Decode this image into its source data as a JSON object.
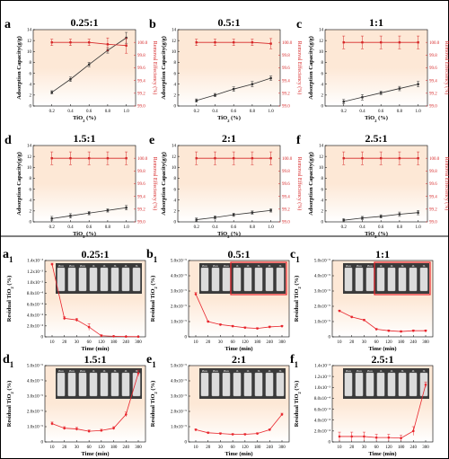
{
  "panel_letters": {
    "a": "a",
    "b": "b",
    "c": "c",
    "d": "d",
    "e": "e",
    "f": "f",
    "a1": "a",
    "b1": "b",
    "c1": "c",
    "d1": "d",
    "e1": "e",
    "f1": "f",
    "sub": "1"
  },
  "chart_data": [
    {
      "id": "a",
      "type": "line",
      "title": "0.25:1",
      "x": [
        0.2,
        0.4,
        0.6,
        0.8,
        1.0
      ],
      "xlabel": "TiO2 (%)",
      "xlim": [
        0,
        1.1
      ],
      "xticks": [
        "0.2",
        "0.4",
        "0.6",
        "0.8",
        "1.0"
      ],
      "ylabel": "Adsorption Capacity(g/g)",
      "ylim": [
        0,
        14
      ],
      "yticks": [
        "0",
        "2",
        "4",
        "6",
        "8",
        "10",
        "12",
        "14"
      ],
      "y2label": "Removal Effeciency (%)",
      "y2lim": [
        99.0,
        100.2
      ],
      "y2ticks": [
        "99.0",
        "99.2",
        "99.4",
        "99.6",
        "99.8",
        "100.0"
      ],
      "series": [
        {
          "axis": "left",
          "color": "#333333",
          "values": [
            2.5,
            4.9,
            7.6,
            10.2,
            12.5
          ],
          "errors": [
            0.3,
            0.4,
            0.4,
            0.5,
            1.0
          ]
        },
        {
          "axis": "right",
          "color": "#d62728",
          "values": [
            100.0,
            100.0,
            100.0,
            99.97,
            99.95
          ],
          "errors": [
            0.05,
            0.05,
            0.05,
            0.1,
            0.12
          ]
        }
      ]
    },
    {
      "id": "b",
      "type": "line",
      "title": "0.5:1",
      "x": [
        0.2,
        0.4,
        0.6,
        0.8,
        1.0
      ],
      "xlabel": "TiO2 (%)",
      "xlim": [
        0,
        1.1
      ],
      "xticks": [
        "0.2",
        "0.4",
        "0.6",
        "0.8",
        "1.0"
      ],
      "ylabel": "Adsorption Capacity(g/g)",
      "ylim": [
        0,
        14
      ],
      "yticks": [
        "0",
        "2",
        "4",
        "6",
        "8",
        "10",
        "12",
        "14"
      ],
      "y2label": "Removal Effeciency (%)",
      "y2lim": [
        99.0,
        100.2
      ],
      "y2ticks": [
        "99.0",
        "99.2",
        "99.4",
        "99.6",
        "99.8",
        "100.0"
      ],
      "series": [
        {
          "axis": "left",
          "color": "#333333",
          "values": [
            1.0,
            2.0,
            3.1,
            4.0,
            5.1
          ],
          "errors": [
            0.3,
            0.3,
            0.4,
            0.5,
            0.4
          ]
        },
        {
          "axis": "right",
          "color": "#d62728",
          "values": [
            100.0,
            100.0,
            100.0,
            100.0,
            99.98
          ],
          "errors": [
            0.05,
            0.05,
            0.05,
            0.05,
            0.08
          ]
        }
      ]
    },
    {
      "id": "c",
      "type": "line",
      "title": "1:1",
      "x": [
        0.2,
        0.4,
        0.6,
        0.8,
        1.0
      ],
      "xlabel": "TiO2 (%)",
      "xlim": [
        0,
        1.1
      ],
      "xticks": [
        "0.2",
        "0.4",
        "0.6",
        "0.8",
        "1.0"
      ],
      "ylabel": "Adsorption Capacity(g/g)",
      "ylim": [
        0,
        14
      ],
      "yticks": [
        "0",
        "2",
        "4",
        "6",
        "8",
        "10",
        "12",
        "14"
      ],
      "y2label": "Removal Effeciency (%)",
      "y2lim": [
        99.0,
        100.2
      ],
      "y2ticks": [
        "99.0",
        "99.2",
        "99.4",
        "99.6",
        "99.8",
        "100.0"
      ],
      "series": [
        {
          "axis": "left",
          "color": "#333333",
          "values": [
            0.8,
            1.6,
            2.4,
            3.2,
            4.0
          ],
          "errors": [
            0.4,
            0.5,
            0.3,
            0.4,
            0.5
          ]
        },
        {
          "axis": "right",
          "color": "#d62728",
          "values": [
            100.0,
            100.0,
            100.0,
            100.0,
            100.0
          ],
          "errors": [
            0.1,
            0.1,
            0.1,
            0.1,
            0.1
          ]
        }
      ]
    },
    {
      "id": "d",
      "type": "line",
      "title": "1.5:1",
      "x": [
        0.2,
        0.4,
        0.6,
        0.8,
        1.0
      ],
      "xlabel": "TiO2 (%)",
      "xlim": [
        0,
        1.1
      ],
      "xticks": [
        "0.2",
        "0.4",
        "0.6",
        "0.8",
        "1.0"
      ],
      "ylabel": "Adsorption Capacity(g/g)",
      "ylim": [
        0,
        14
      ],
      "yticks": [
        "0",
        "2",
        "4",
        "6",
        "8",
        "10",
        "12",
        "14"
      ],
      "y2label": "Removal Effeciency (%)",
      "y2lim": [
        99.0,
        100.2
      ],
      "y2ticks": [
        "99.0",
        "99.2",
        "99.4",
        "99.6",
        "99.8",
        "100.0"
      ],
      "series": [
        {
          "axis": "left",
          "color": "#333333",
          "values": [
            0.6,
            1.1,
            1.6,
            2.1,
            2.6
          ],
          "errors": [
            0.4,
            0.4,
            0.3,
            0.3,
            0.4
          ]
        },
        {
          "axis": "right",
          "color": "#d62728",
          "values": [
            100.0,
            100.0,
            100.0,
            100.0,
            100.0
          ],
          "errors": [
            0.1,
            0.1,
            0.1,
            0.1,
            0.1
          ]
        }
      ]
    },
    {
      "id": "e",
      "type": "line",
      "title": "2:1",
      "x": [
        0.2,
        0.4,
        0.6,
        0.8,
        1.0
      ],
      "xlabel": "TiO2 (%)",
      "xlim": [
        0,
        1.1
      ],
      "xticks": [
        "0.2",
        "0.4",
        "0.6",
        "0.8",
        "1.0"
      ],
      "ylabel": "Adsorption Capacity(g/g)",
      "ylim": [
        0,
        14
      ],
      "yticks": [
        "0",
        "2",
        "4",
        "6",
        "8",
        "10",
        "12",
        "14"
      ],
      "y2label": "Removal Effeciency (%)",
      "y2lim": [
        99.0,
        100.2
      ],
      "y2ticks": [
        "99.0",
        "99.2",
        "99.4",
        "99.6",
        "99.8",
        "100.0"
      ],
      "series": [
        {
          "axis": "left",
          "color": "#333333",
          "values": [
            0.4,
            0.8,
            1.3,
            1.7,
            2.1
          ],
          "errors": [
            0.3,
            0.3,
            0.3,
            0.3,
            0.3
          ]
        },
        {
          "axis": "right",
          "color": "#d62728",
          "values": [
            100.0,
            100.0,
            100.0,
            100.0,
            100.0
          ],
          "errors": [
            0.1,
            0.1,
            0.1,
            0.1,
            0.1
          ]
        }
      ]
    },
    {
      "id": "f",
      "type": "line",
      "title": "2.5:1",
      "x": [
        0.2,
        0.4,
        0.6,
        0.8,
        1.0
      ],
      "xlabel": "TiO2 (%)",
      "xlim": [
        0,
        1.1
      ],
      "xticks": [
        "0.2",
        "0.4",
        "0.6",
        "0.8",
        "1.0"
      ],
      "ylabel": "Adsorption Capacity(g/g)",
      "ylim": [
        0,
        14
      ],
      "yticks": [
        "0",
        "2",
        "4",
        "6",
        "8",
        "10",
        "12",
        "14"
      ],
      "y2label": "Removal Effeciency (%)",
      "y2lim": [
        99.0,
        100.2
      ],
      "y2ticks": [
        "99.0",
        "99.2",
        "99.4",
        "99.6",
        "99.8",
        "100.0"
      ],
      "series": [
        {
          "axis": "left",
          "color": "#333333",
          "values": [
            0.3,
            0.7,
            1.0,
            1.4,
            1.7
          ],
          "errors": [
            0.3,
            0.3,
            0.3,
            0.4,
            0.4
          ]
        },
        {
          "axis": "right",
          "color": "#d62728",
          "values": [
            100.0,
            100.0,
            100.0,
            100.0,
            100.0
          ],
          "errors": [
            0.1,
            0.1,
            0.1,
            0.1,
            0.1
          ]
        }
      ]
    },
    {
      "id": "a1",
      "type": "line",
      "title": "0.25:1",
      "x": [
        10,
        20,
        30,
        60,
        120,
        180,
        240,
        300
      ],
      "xticks": [
        "10",
        "20",
        "30",
        "60",
        "120",
        "180",
        "240",
        "300"
      ],
      "xlabel": "Time (min)",
      "ylabel": "Residual TiO2 (%)",
      "ylim": [
        0,
        1.4
      ],
      "yticks": [
        "0",
        "2.0x10⁻⁴",
        "4.0x10⁻⁴",
        "6.0x10⁻⁴",
        "8.0x10⁻⁴",
        "1.0x10⁻³",
        "1.2x10⁻³",
        "1.4x10⁻³"
      ],
      "series": [
        {
          "color": "#e8262d",
          "values": [
            1.33,
            0.34,
            0.31,
            0.18,
            0.02,
            0.01,
            0.005,
            0.003
          ],
          "errors": [
            0.02,
            0.03,
            0.03,
            0.06,
            0.02,
            0.01,
            0.005,
            0.003
          ]
        }
      ]
    },
    {
      "id": "b1",
      "type": "line",
      "title": "0.5:1",
      "x": [
        10,
        20,
        30,
        60,
        120,
        180,
        240,
        300
      ],
      "xticks": [
        "10",
        "20",
        "30",
        "60",
        "120",
        "180",
        "240",
        "300"
      ],
      "xlabel": "Time (min)",
      "ylabel": "Residual TiO2 (%)",
      "ylim": [
        0,
        5.0
      ],
      "yticks": [
        "0",
        "1.0x10⁻⁵",
        "2.0x10⁻⁵",
        "3.0x10⁻⁵",
        "4.0x10⁻⁵",
        "5.0x10⁻⁵"
      ],
      "series": [
        {
          "color": "#e8262d",
          "values": [
            2.8,
            1.0,
            0.8,
            0.7,
            0.6,
            0.55,
            0.65,
            0.7
          ],
          "errors": [
            0.1,
            0.05,
            0.05,
            0.05,
            0.05,
            0.05,
            0.05,
            0.05
          ]
        }
      ]
    },
    {
      "id": "c1",
      "type": "line",
      "title": "1:1",
      "x": [
        10,
        20,
        30,
        60,
        120,
        180,
        240,
        300
      ],
      "xticks": [
        "10",
        "20",
        "30",
        "60",
        "120",
        "180",
        "240",
        "300"
      ],
      "xlabel": "Time (min)",
      "ylabel": "Residual TiO2 (%)",
      "ylim": [
        0,
        5.0
      ],
      "yticks": [
        "0",
        "1.0x10⁻⁵",
        "2.0x10⁻⁵",
        "3.0x10⁻⁵",
        "4.0x10⁻⁵",
        "5.0x10⁻⁵"
      ],
      "series": [
        {
          "color": "#e8262d",
          "values": [
            1.7,
            1.3,
            1.1,
            0.5,
            0.4,
            0.35,
            0.4,
            0.4
          ],
          "errors": [
            0.05,
            0.05,
            0.05,
            0.05,
            0.05,
            0.05,
            0.05,
            0.05
          ]
        }
      ]
    },
    {
      "id": "d1",
      "type": "line",
      "title": "1.5:1",
      "x": [
        10,
        20,
        30,
        60,
        120,
        180,
        240,
        300
      ],
      "xticks": [
        "10",
        "20",
        "30",
        "60",
        "120",
        "180",
        "240",
        "300"
      ],
      "xlabel": "Time (min)",
      "ylabel": "Residual TiO2 (%)",
      "ylim": [
        0,
        5.0
      ],
      "yticks": [
        "0",
        "1.0x10⁻⁵",
        "2.0x10⁻⁵",
        "3.0x10⁻⁵",
        "4.0x10⁻⁵",
        "5.0x10⁻⁵"
      ],
      "series": [
        {
          "color": "#e8262d",
          "values": [
            1.2,
            0.9,
            0.85,
            0.7,
            0.75,
            0.9,
            1.8,
            4.5
          ],
          "errors": [
            0.1,
            0.1,
            0.1,
            0.08,
            0.08,
            0.1,
            0.15,
            0.2
          ]
        }
      ]
    },
    {
      "id": "e1",
      "type": "line",
      "title": "2:1",
      "x": [
        10,
        20,
        30,
        60,
        120,
        180,
        240,
        300
      ],
      "xticks": [
        "10",
        "20",
        "30",
        "60",
        "120",
        "180",
        "240",
        "300"
      ],
      "xlabel": "Time (min)",
      "ylabel": "Residual TiO2 (%)",
      "ylim": [
        0,
        5.0
      ],
      "yticks": [
        "0",
        "1.0x10⁻⁵",
        "2.0x10⁻⁵",
        "3.0x10⁻⁵",
        "4.0x10⁻⁵",
        "5.0x10⁻⁵"
      ],
      "series": [
        {
          "color": "#e8262d",
          "values": [
            0.8,
            0.6,
            0.55,
            0.5,
            0.5,
            0.55,
            0.8,
            1.8
          ],
          "errors": [
            0.05,
            0.05,
            0.05,
            0.05,
            0.05,
            0.05,
            0.05,
            0.08
          ]
        }
      ]
    },
    {
      "id": "f1",
      "type": "line",
      "title": "2.5:1",
      "x": [
        10,
        20,
        30,
        60,
        120,
        180,
        240,
        300
      ],
      "xticks": [
        "10",
        "20",
        "30",
        "60",
        "120",
        "180",
        "240",
        "300"
      ],
      "xlabel": "Time (min)",
      "ylabel": "Residual TiO2 (%)",
      "ylim": [
        0,
        1.4
      ],
      "yticks": [
        "0",
        "2.0x10⁻⁴",
        "4.0x10⁻⁴",
        "6.0x10⁻⁴",
        "8.0x10⁻⁴",
        "1.0x10⁻³",
        "1.2x10⁻³",
        "1.4x10⁻³"
      ],
      "series": [
        {
          "color": "#e8262d",
          "values": [
            0.1,
            0.1,
            0.1,
            0.08,
            0.08,
            0.07,
            0.2,
            1.05
          ],
          "errors": [
            0.08,
            0.08,
            0.08,
            0.06,
            0.06,
            0.05,
            0.08,
            0.05
          ]
        }
      ]
    }
  ],
  "vials": [
    "Photo",
    "Photo",
    "Photo",
    "1h",
    "2h",
    "3h",
    "4h",
    "5h"
  ],
  "colors": {
    "panel_bg_top": "#fde8d6",
    "panel_bg_bottom": "#ffffff",
    "frame": "#000000",
    "highlight": "#e8262d",
    "photo_bg": "#3a3a3a"
  }
}
